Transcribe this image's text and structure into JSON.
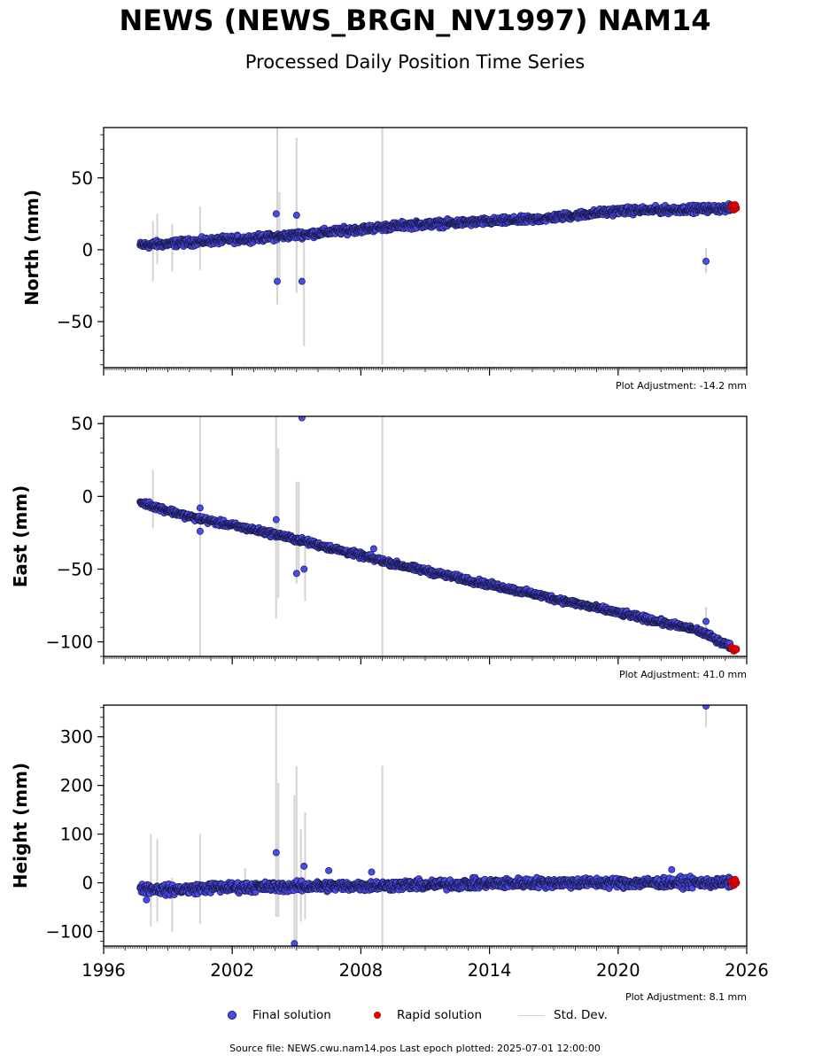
{
  "title": "NEWS (NEWS_BRGN_NV1997) NAM14",
  "subtitle": "Processed Daily Position Time Series",
  "legend": {
    "final": "Final solution",
    "rapid": "Rapid solution",
    "std": "Std. Dev."
  },
  "footer": "Source file: NEWS.cwu.nam14.pos  Last epoch plotted: 2025-07-01 12:00:00",
  "colors": {
    "final": "#4b4bef",
    "final_edge": "#1a1a4a",
    "rapid": "#e00000",
    "std": "#d3d3d3"
  },
  "chart_data": [
    {
      "type": "scatter",
      "ylabel": "North (mm)",
      "adjustment": "Plot Adjustment: -14.2 mm",
      "xlim": [
        1996,
        2026
      ],
      "ylim": [
        -82,
        85
      ],
      "yticks": [
        50,
        0,
        -50
      ],
      "ytick_labels": [
        "50",
        "0",
        "−50"
      ],
      "start": 1997.7,
      "end": 2025.5,
      "trend": [
        [
          1997.7,
          3
        ],
        [
          2004,
          9
        ],
        [
          2010,
          17
        ],
        [
          2016,
          21
        ],
        [
          2020,
          27
        ],
        [
          2025.5,
          29
        ]
      ],
      "scatter_amp": 2.5,
      "outliers": [
        [
          2004.05,
          25
        ],
        [
          2004.1,
          -22
        ],
        [
          2005.0,
          24
        ],
        [
          2005.25,
          -22
        ],
        [
          2024.1,
          -8
        ]
      ],
      "errorbars": [
        [
          1998.3,
          -22,
          20
        ],
        [
          1998.5,
          -10,
          25
        ],
        [
          1999.2,
          -15,
          18
        ],
        [
          2000.5,
          -14,
          30
        ],
        [
          2004.1,
          -38,
          85
        ],
        [
          2004.2,
          -20,
          40
        ],
        [
          2005.0,
          -30,
          78
        ],
        [
          2005.35,
          -67,
          5
        ],
        [
          2009.0,
          -80,
          85
        ],
        [
          2024.1,
          -16,
          1
        ]
      ],
      "rapid": [
        [
          2025.3,
          30
        ],
        [
          2025.4,
          28
        ],
        [
          2025.5,
          29
        ],
        [
          2025.45,
          31
        ]
      ]
    },
    {
      "type": "scatter",
      "ylabel": "East (mm)",
      "adjustment": "Plot Adjustment: 41.0 mm",
      "xlim": [
        1996,
        2026
      ],
      "ylim": [
        -110,
        55
      ],
      "yticks": [
        50,
        0,
        -50,
        -100
      ],
      "ytick_labels": [
        "50",
        "0",
        "−50",
        "−100"
      ],
      "start": 1997.7,
      "end": 2025.5,
      "trend": [
        [
          1997.7,
          -4
        ],
        [
          2000,
          -14
        ],
        [
          2004,
          -26
        ],
        [
          2010,
          -48
        ],
        [
          2016,
          -67
        ],
        [
          2020,
          -80
        ],
        [
          2023.7,
          -92
        ],
        [
          2025.5,
          -105
        ]
      ],
      "scatter_amp": 2.0,
      "outliers": [
        [
          2000.5,
          -8
        ],
        [
          2000.5,
          -24
        ],
        [
          2004.05,
          -16
        ],
        [
          2005.0,
          -53
        ],
        [
          2005.25,
          54
        ],
        [
          2005.35,
          -50
        ],
        [
          2008.6,
          -36
        ],
        [
          2024.1,
          -86
        ]
      ],
      "errorbars": [
        [
          1998.3,
          -22,
          18
        ],
        [
          2000.5,
          -110,
          55
        ],
        [
          2004.05,
          -84,
          55
        ],
        [
          2004.15,
          -70,
          33
        ],
        [
          2005.0,
          -60,
          10
        ],
        [
          2005.1,
          -55,
          10
        ],
        [
          2005.4,
          -72,
          -30
        ],
        [
          2009.0,
          -110,
          55
        ],
        [
          2024.1,
          -95,
          -76
        ]
      ],
      "rapid": [
        [
          2025.3,
          -104
        ],
        [
          2025.4,
          -106
        ],
        [
          2025.5,
          -105
        ]
      ]
    },
    {
      "type": "scatter",
      "ylabel": "Height (mm)",
      "adjustment": "Plot Adjustment: 8.1 mm",
      "xlim": [
        1996,
        2026
      ],
      "ylim": [
        -130,
        365
      ],
      "yticks": [
        300,
        200,
        100,
        0,
        -100
      ],
      "ytick_labels": [
        "300",
        "200",
        "100",
        "0",
        "−100"
      ],
      "xticks": [
        1996,
        2002,
        2008,
        2014,
        2020,
        2026
      ],
      "xtick_labels": [
        "1996",
        "2002",
        "2008",
        "2014",
        "2020",
        "2026"
      ],
      "start": 1997.7,
      "end": 2025.5,
      "trend": [
        [
          1997.7,
          -10
        ],
        [
          1999,
          -15
        ],
        [
          2001,
          -10
        ],
        [
          2010,
          -5
        ],
        [
          2016,
          0
        ],
        [
          2025.5,
          0
        ]
      ],
      "scatter_amp": 10,
      "outliers": [
        [
          2004.05,
          62
        ],
        [
          2004.9,
          -125
        ],
        [
          2005.35,
          34
        ],
        [
          2006.5,
          25
        ],
        [
          2008.5,
          22
        ],
        [
          2022.5,
          27
        ],
        [
          2024.1,
          363
        ],
        [
          1998.0,
          -35
        ]
      ],
      "errorbars": [
        [
          1998.2,
          -90,
          100
        ],
        [
          1998.5,
          -80,
          90
        ],
        [
          1999.2,
          -100,
          10
        ],
        [
          2000.5,
          -85,
          100
        ],
        [
          2002.6,
          -20,
          30
        ],
        [
          2004.05,
          -70,
          365
        ],
        [
          2004.15,
          -70,
          205
        ],
        [
          2004.9,
          -130,
          180
        ],
        [
          2005.0,
          -120,
          240
        ],
        [
          2005.2,
          -80,
          110
        ],
        [
          2005.4,
          -75,
          145
        ],
        [
          2009.0,
          -130,
          240
        ],
        [
          2024.1,
          320,
          365
        ]
      ],
      "rapid": [
        [
          2025.3,
          2
        ],
        [
          2025.4,
          -4
        ],
        [
          2025.5,
          0
        ],
        [
          2025.45,
          6
        ]
      ]
    }
  ]
}
